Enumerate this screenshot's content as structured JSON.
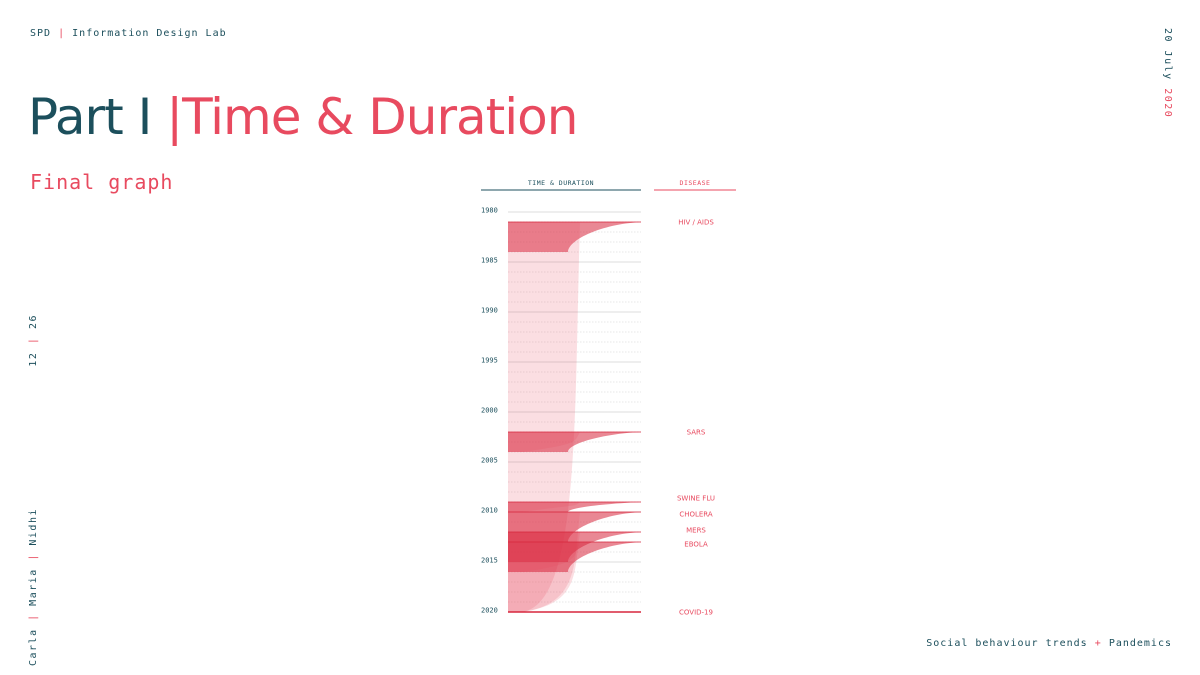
{
  "header": {
    "brand_left": "SPD",
    "brand_sep": "|",
    "brand_right": "Information Design Lab",
    "date_teal": "20 July",
    "date_pink": "2020"
  },
  "title": {
    "part": "Part I",
    "sep": "|",
    "topic": "Time & Duration"
  },
  "subtitle": "Final graph",
  "page": {
    "current": "12",
    "sep": "|",
    "total": "26"
  },
  "authors": [
    "Carla",
    "Maria",
    "Nidhi"
  ],
  "author_sep": "|",
  "footer": {
    "left": "Social behaviour trends",
    "plus": "+",
    "right": "Pandemics"
  },
  "colors": {
    "teal": "#1c4f5c",
    "pink": "#e84a5f",
    "accent_red": "#d7263d"
  },
  "chart_data": {
    "type": "area",
    "column_headers": [
      "TIME & DURATION",
      "DISEASE"
    ],
    "y_ticks": [
      1980,
      1985,
      1990,
      1995,
      2000,
      2005,
      2010,
      2015,
      2020
    ],
    "ylim": [
      1980,
      2020
    ],
    "series": [
      {
        "name": "HIV / AIDS",
        "start": 1981,
        "end": 2020
      },
      {
        "name": "SARS",
        "start": 2002,
        "end": 2004
      },
      {
        "name": "SWINE FLU",
        "start": 2009,
        "end": 2010
      },
      {
        "name": "CHOLERA",
        "start": 2010,
        "end": 2020
      },
      {
        "name": "MERS",
        "start": 2012,
        "end": 2020
      },
      {
        "name": "EBOLA",
        "start": 2013,
        "end": 2016
      },
      {
        "name": "COVID-19",
        "start": 2020,
        "end": 2020
      }
    ]
  }
}
